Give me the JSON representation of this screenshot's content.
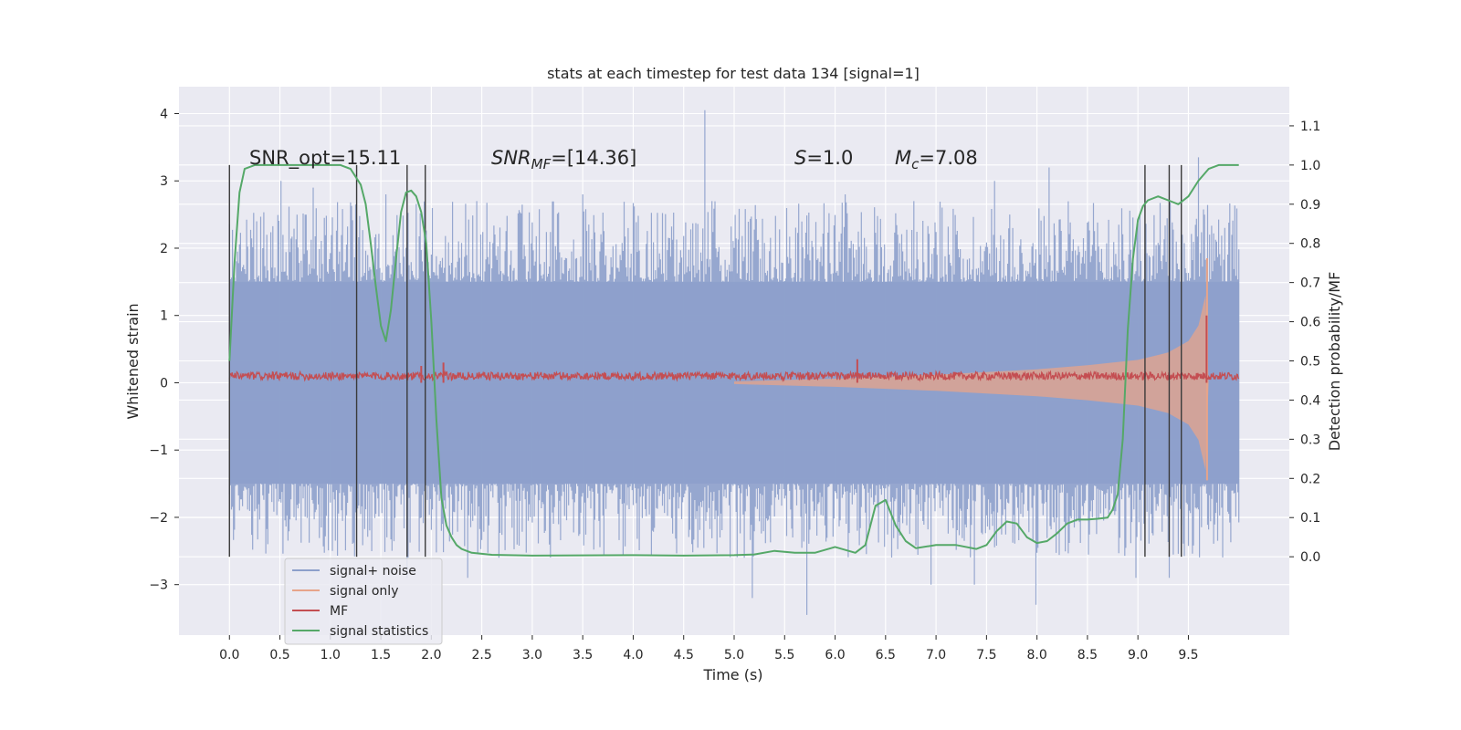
{
  "chart_data": {
    "type": "line",
    "title": "stats at each timestep for test data 134 [signal=1]",
    "xlabel": "Time (s)",
    "ylabel_left": "Whitened strain",
    "ylabel_right": "Detection probability/MF",
    "xlim": [
      -0.5,
      10.5
    ],
    "ylim_left": [
      -3.75,
      4.4
    ],
    "ylim_right": [
      -0.2,
      1.2
    ],
    "x_ticks": [
      0.0,
      0.5,
      1.0,
      1.5,
      2.0,
      2.5,
      3.0,
      3.5,
      4.0,
      4.5,
      5.0,
      5.5,
      6.0,
      6.5,
      7.0,
      7.5,
      8.0,
      8.5,
      9.0,
      9.5
    ],
    "x_tick_labels": [
      "0.0",
      "0.5",
      "1.0",
      "1.5",
      "2.0",
      "2.5",
      "3.0",
      "3.5",
      "4.0",
      "4.5",
      "5.0",
      "5.5",
      "6.0",
      "6.5",
      "7.0",
      "7.5",
      "8.0",
      "8.5",
      "9.0",
      "9.5"
    ],
    "y_left_ticks": [
      -3,
      -2,
      -1,
      0,
      1,
      2,
      3,
      4
    ],
    "y_left_tick_labels": [
      "−3",
      "−2",
      "−1",
      "0",
      "1",
      "2",
      "3",
      "4"
    ],
    "y_right_ticks": [
      0.0,
      0.1,
      0.2,
      0.3,
      0.4,
      0.5,
      0.6,
      0.7,
      0.8,
      0.9,
      1.0,
      1.1
    ],
    "y_right_tick_labels": [
      "0.0",
      "0.1",
      "0.2",
      "0.3",
      "0.4",
      "0.5",
      "0.6",
      "0.7",
      "0.8",
      "0.9",
      "1.0",
      "1.1"
    ],
    "grid": true,
    "legend_position": "lower-left",
    "annotations": {
      "snr_opt": "SNR_opt=15.11",
      "snr_mf_symbol": "SNR",
      "snr_mf_sub": "MF",
      "snr_mf_value": "=[14.36]",
      "s_symbol": "S",
      "s_value": "=1.0",
      "mc_symbol": "M",
      "mc_sub": "c",
      "mc_value": "=7.08"
    },
    "vertical_lines_x": [
      0.0,
      1.26,
      1.76,
      1.94,
      9.07,
      9.31,
      9.43
    ],
    "vertical_lines_ylim_right": [
      0.0,
      1.0
    ],
    "series": [
      {
        "name": "signal+ noise",
        "color": "#8da0cb",
        "axis": "left",
        "x_range": [
          0.0,
          10.0
        ],
        "core_band": [
          -1.5,
          1.5
        ],
        "peaks": [
          [
            0.27,
            2.4
          ],
          [
            0.51,
            3.0
          ],
          [
            0.83,
            2.9
          ],
          [
            1.55,
            2.8
          ],
          [
            2.45,
            2.7
          ],
          [
            3.5,
            2.8
          ],
          [
            3.95,
            2.3
          ],
          [
            4.71,
            4.05
          ],
          [
            4.78,
            2.7
          ],
          [
            5.52,
            2.5
          ],
          [
            6.1,
            2.8
          ],
          [
            6.78,
            2.7
          ],
          [
            7.58,
            3.0
          ],
          [
            8.12,
            3.2
          ],
          [
            9.6,
            3.35
          ],
          [
            0.38,
            -2.4
          ],
          [
            1.76,
            -2.9
          ],
          [
            2.36,
            -2.9
          ],
          [
            2.67,
            -2.6
          ],
          [
            5.1,
            -2.6
          ],
          [
            5.18,
            -3.2
          ],
          [
            5.72,
            -3.45
          ],
          [
            6.95,
            -3.0
          ],
          [
            7.38,
            -3.0
          ],
          [
            7.99,
            -3.3
          ],
          [
            8.98,
            -2.9
          ],
          [
            9.31,
            -2.9
          ]
        ]
      },
      {
        "name": "signal only",
        "color": "#e7a48a",
        "axis": "left",
        "envelope_x": [
          5.0,
          6.0,
          7.0,
          7.5,
          8.0,
          8.5,
          9.0,
          9.3,
          9.5,
          9.6,
          9.67,
          9.7
        ],
        "envelope_amp": [
          0.02,
          0.06,
          0.12,
          0.16,
          0.2,
          0.26,
          0.34,
          0.45,
          0.62,
          0.85,
          1.3,
          0.0
        ]
      },
      {
        "name": "MF",
        "color": "#c44e52",
        "axis": "left",
        "baseline": 0.1,
        "noise": 0.06,
        "spikes": [
          [
            1.9,
            0.25
          ],
          [
            2.12,
            0.3
          ],
          [
            6.22,
            0.35
          ],
          [
            9.68,
            1.0
          ]
        ]
      },
      {
        "name": "signal statistics",
        "color": "#55a868",
        "axis": "right",
        "x": [
          0.0,
          0.05,
          0.1,
          0.15,
          0.25,
          0.5,
          0.8,
          1.0,
          1.1,
          1.2,
          1.3,
          1.35,
          1.4,
          1.45,
          1.5,
          1.55,
          1.6,
          1.65,
          1.7,
          1.75,
          1.8,
          1.85,
          1.9,
          1.95,
          2.0,
          2.05,
          2.1,
          2.15,
          2.2,
          2.25,
          2.3,
          2.4,
          2.6,
          3.0,
          4.0,
          4.5,
          5.0,
          5.2,
          5.4,
          5.6,
          5.8,
          6.0,
          6.2,
          6.3,
          6.4,
          6.5,
          6.6,
          6.7,
          6.8,
          7.0,
          7.2,
          7.4,
          7.5,
          7.6,
          7.7,
          7.8,
          7.9,
          8.0,
          8.1,
          8.2,
          8.3,
          8.4,
          8.5,
          8.6,
          8.7,
          8.75,
          8.8,
          8.85,
          8.9,
          8.95,
          9.0,
          9.05,
          9.1,
          9.2,
          9.3,
          9.4,
          9.5,
          9.6,
          9.7,
          9.8,
          10.0
        ],
        "y": [
          0.5,
          0.75,
          0.93,
          0.99,
          1.0,
          1.0,
          1.0,
          1.0,
          1.0,
          0.99,
          0.95,
          0.9,
          0.8,
          0.69,
          0.59,
          0.55,
          0.63,
          0.76,
          0.88,
          0.93,
          0.935,
          0.92,
          0.88,
          0.8,
          0.6,
          0.35,
          0.15,
          0.08,
          0.05,
          0.03,
          0.02,
          0.01,
          0.005,
          0.003,
          0.004,
          0.003,
          0.004,
          0.006,
          0.015,
          0.01,
          0.01,
          0.025,
          0.01,
          0.03,
          0.13,
          0.145,
          0.08,
          0.04,
          0.022,
          0.03,
          0.03,
          0.02,
          0.03,
          0.065,
          0.09,
          0.085,
          0.05,
          0.035,
          0.04,
          0.06,
          0.085,
          0.095,
          0.095,
          0.097,
          0.1,
          0.12,
          0.16,
          0.3,
          0.58,
          0.76,
          0.86,
          0.895,
          0.91,
          0.92,
          0.91,
          0.9,
          0.92,
          0.96,
          0.99,
          1.0,
          1.0
        ]
      }
    ]
  }
}
